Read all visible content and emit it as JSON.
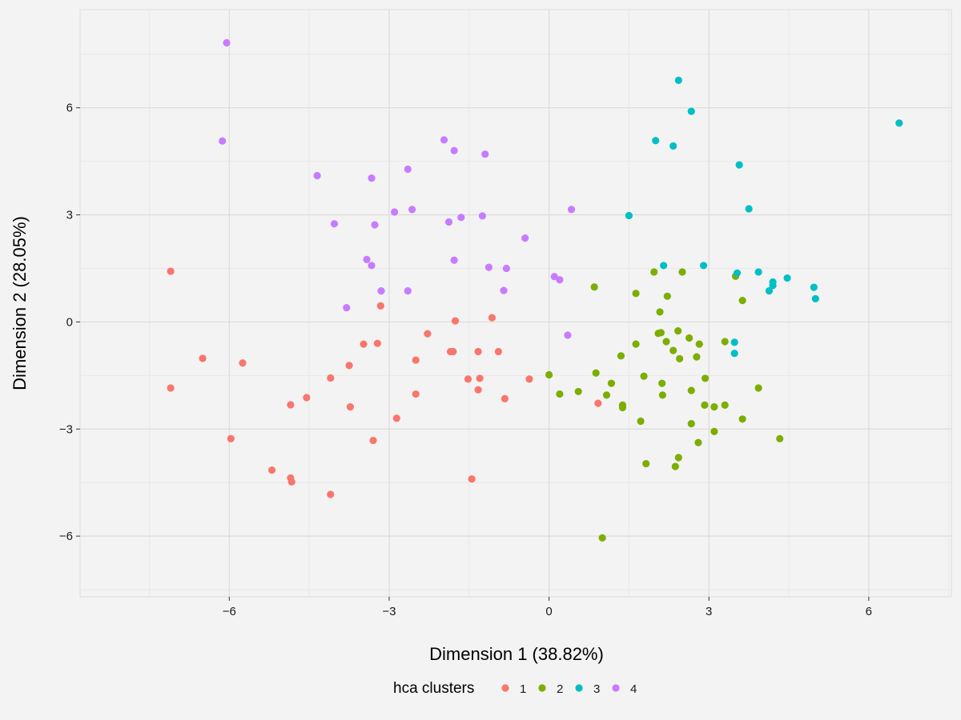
{
  "chart_data": {
    "type": "scatter",
    "title": "",
    "xlabel": "Dimension 1 (38.82%)",
    "ylabel": "Dimension 2 (28.05%)",
    "xlim": [
      -8.8,
      7.55
    ],
    "ylim": [
      -7.7,
      8.75
    ],
    "x_ticks": [
      -6,
      -3,
      0,
      3,
      6
    ],
    "y_ticks": [
      -6,
      -3,
      0,
      3,
      6
    ],
    "x_tick_labels": [
      "−6",
      "−3",
      "0",
      "3",
      "6"
    ],
    "y_tick_labels": [
      "−6",
      "−3",
      "0",
      "3",
      "6"
    ],
    "grid": true,
    "legend": {
      "title": "hca clusters",
      "position": "bottom"
    },
    "series": [
      {
        "name": "1",
        "color": "#f8766d",
        "points": [
          [
            -7.1,
            1.42
          ],
          [
            -6.5,
            -1.02
          ],
          [
            -7.1,
            -1.85
          ],
          [
            -5.75,
            -1.15
          ],
          [
            -5.97,
            -3.27
          ],
          [
            -5.2,
            -4.15
          ],
          [
            -4.85,
            -4.37
          ],
          [
            -4.83,
            -4.48
          ],
          [
            -4.1,
            -4.83
          ],
          [
            -4.85,
            -2.32
          ],
          [
            -4.55,
            -2.12
          ],
          [
            -4.1,
            -1.57
          ],
          [
            -3.75,
            -1.22
          ],
          [
            -3.73,
            -2.38
          ],
          [
            -3.48,
            -0.62
          ],
          [
            -3.22,
            -0.6
          ],
          [
            -3.3,
            -3.32
          ],
          [
            -3.16,
            0.45
          ],
          [
            -2.86,
            -2.7
          ],
          [
            -2.5,
            -1.07
          ],
          [
            -2.5,
            -2.02
          ],
          [
            -2.28,
            -0.33
          ],
          [
            -1.76,
            0.03
          ],
          [
            -1.85,
            -0.83
          ],
          [
            -1.8,
            -0.83
          ],
          [
            -1.52,
            -1.6
          ],
          [
            -1.33,
            -0.83
          ],
          [
            -1.33,
            -1.9
          ],
          [
            -1.3,
            -1.58
          ],
          [
            -1.07,
            0.12
          ],
          [
            -0.95,
            -0.83
          ],
          [
            -0.83,
            -2.15
          ],
          [
            -0.37,
            -1.6
          ],
          [
            -1.45,
            -4.4
          ],
          [
            0.92,
            -2.28
          ]
        ]
      },
      {
        "name": "2",
        "color": "#7cae00",
        "points": [
          [
            0.85,
            0.98
          ],
          [
            1.63,
            0.8
          ],
          [
            1.97,
            1.4
          ],
          [
            2.5,
            1.4
          ],
          [
            2.22,
            0.72
          ],
          [
            2.08,
            0.28
          ],
          [
            3.5,
            1.28
          ],
          [
            3.63,
            0.6
          ],
          [
            2.05,
            -0.32
          ],
          [
            2.1,
            -0.3
          ],
          [
            2.2,
            -0.55
          ],
          [
            2.42,
            -0.25
          ],
          [
            2.63,
            -0.45
          ],
          [
            2.82,
            -0.62
          ],
          [
            3.3,
            -0.55
          ],
          [
            1.63,
            -0.62
          ],
          [
            2.33,
            -0.8
          ],
          [
            2.45,
            -1.03
          ],
          [
            2.77,
            -0.98
          ],
          [
            1.35,
            -0.95
          ],
          [
            0.0,
            -1.48
          ],
          [
            0.88,
            -1.43
          ],
          [
            1.78,
            -1.52
          ],
          [
            2.93,
            -1.58
          ],
          [
            1.17,
            -1.72
          ],
          [
            2.12,
            -1.72
          ],
          [
            0.2,
            -2.02
          ],
          [
            0.55,
            -1.95
          ],
          [
            1.08,
            -2.05
          ],
          [
            2.13,
            -2.05
          ],
          [
            2.67,
            -1.92
          ],
          [
            3.93,
            -1.85
          ],
          [
            1.38,
            -2.33
          ],
          [
            1.38,
            -2.4
          ],
          [
            2.92,
            -2.33
          ],
          [
            3.1,
            -2.38
          ],
          [
            3.3,
            -2.33
          ],
          [
            1.72,
            -2.78
          ],
          [
            2.67,
            -2.85
          ],
          [
            3.63,
            -2.72
          ],
          [
            3.1,
            -3.07
          ],
          [
            2.8,
            -3.38
          ],
          [
            4.33,
            -3.27
          ],
          [
            2.43,
            -3.8
          ],
          [
            1.82,
            -3.97
          ],
          [
            2.37,
            -4.05
          ],
          [
            1.0,
            -6.05
          ]
        ]
      },
      {
        "name": "3",
        "color": "#00bfc4",
        "points": [
          [
            2.43,
            6.77
          ],
          [
            2.67,
            5.9
          ],
          [
            2.0,
            5.08
          ],
          [
            2.33,
            4.93
          ],
          [
            3.57,
            4.4
          ],
          [
            3.75,
            3.17
          ],
          [
            1.5,
            2.98
          ],
          [
            6.57,
            5.57
          ],
          [
            2.15,
            1.58
          ],
          [
            2.9,
            1.58
          ],
          [
            3.53,
            1.37
          ],
          [
            3.93,
            1.4
          ],
          [
            4.2,
            1.12
          ],
          [
            4.47,
            1.23
          ],
          [
            4.13,
            0.87
          ],
          [
            4.2,
            1.02
          ],
          [
            4.97,
            0.97
          ],
          [
            5.0,
            0.65
          ],
          [
            3.48,
            -0.57
          ],
          [
            3.48,
            -0.88
          ]
        ]
      },
      {
        "name": "4",
        "color": "#c77cff",
        "points": [
          [
            -6.05,
            7.82
          ],
          [
            -6.13,
            5.07
          ],
          [
            -1.97,
            5.1
          ],
          [
            -1.78,
            4.8
          ],
          [
            -1.2,
            4.7
          ],
          [
            -4.35,
            4.1
          ],
          [
            -3.33,
            4.03
          ],
          [
            -2.65,
            4.28
          ],
          [
            -4.03,
            2.75
          ],
          [
            -3.27,
            2.72
          ],
          [
            -2.9,
            3.08
          ],
          [
            -2.57,
            3.15
          ],
          [
            -1.88,
            2.8
          ],
          [
            -1.65,
            2.93
          ],
          [
            -1.25,
            2.97
          ],
          [
            0.42,
            3.15
          ],
          [
            -0.45,
            2.35
          ],
          [
            -3.42,
            1.75
          ],
          [
            -3.33,
            1.58
          ],
          [
            -1.78,
            1.73
          ],
          [
            -1.13,
            1.53
          ],
          [
            -0.8,
            1.5
          ],
          [
            -3.15,
            0.87
          ],
          [
            -2.65,
            0.87
          ],
          [
            -0.85,
            0.88
          ],
          [
            0.1,
            1.27
          ],
          [
            0.2,
            1.18
          ],
          [
            -3.8,
            0.4
          ],
          [
            0.35,
            -0.37
          ]
        ]
      }
    ]
  }
}
